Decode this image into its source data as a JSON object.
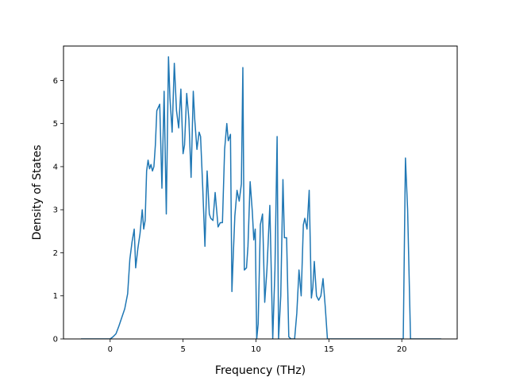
{
  "chart_data": {
    "type": "line",
    "title": "",
    "xlabel": "Frequency (THz)",
    "ylabel": "Density of States",
    "xlim": [
      -3.2,
      23.8
    ],
    "ylim": [
      0,
      6.8
    ],
    "grid": false,
    "legend": "none",
    "x_ticks": [
      0,
      5,
      10,
      15,
      20
    ],
    "x_tick_labels": [
      "0",
      "5",
      "10",
      "15",
      "20"
    ],
    "y_ticks": [
      0,
      1,
      2,
      3,
      4,
      5,
      6
    ],
    "y_tick_labels": [
      "0",
      "1",
      "2",
      "3",
      "4",
      "5",
      "6"
    ],
    "series": [
      {
        "color": "#1f77b4",
        "x": [
          -2.0,
          -1.0,
          0.0,
          0.2,
          0.4,
          0.6,
          0.8,
          1.0,
          1.2,
          1.35,
          1.5,
          1.65,
          1.75,
          1.9,
          2.05,
          2.2,
          2.3,
          2.4,
          2.5,
          2.6,
          2.7,
          2.8,
          2.9,
          3.0,
          3.1,
          3.2,
          3.4,
          3.55,
          3.7,
          3.85,
          4.0,
          4.1,
          4.25,
          4.4,
          4.55,
          4.7,
          4.85,
          5.0,
          5.1,
          5.25,
          5.4,
          5.55,
          5.7,
          5.8,
          5.95,
          6.1,
          6.2,
          6.35,
          6.5,
          6.65,
          6.8,
          6.9,
          7.05,
          7.2,
          7.4,
          7.55,
          7.7,
          7.85,
          8.0,
          8.1,
          8.25,
          8.35,
          8.45,
          8.55,
          8.7,
          8.85,
          9.0,
          9.1,
          9.2,
          9.35,
          9.45,
          9.6,
          9.75,
          9.85,
          9.95,
          10.05,
          10.15,
          10.3,
          10.45,
          10.6,
          10.75,
          10.95,
          11.15,
          11.3,
          11.45,
          11.55,
          11.7,
          11.85,
          11.95,
          12.1,
          12.25,
          12.4,
          12.55,
          12.65,
          12.8,
          12.95,
          13.1,
          13.25,
          13.35,
          13.5,
          13.65,
          13.8,
          13.9,
          14.0,
          14.15,
          14.3,
          14.45,
          14.6,
          14.75,
          14.9,
          15.05,
          15.2,
          15.4,
          17.0,
          19.0,
          20.1,
          20.25,
          20.4,
          20.6,
          20.8,
          21.5,
          22.7
        ],
        "values": [
          0,
          0,
          0,
          0.05,
          0.12,
          0.3,
          0.5,
          0.7,
          1.05,
          1.85,
          2.25,
          2.55,
          1.65,
          2.1,
          2.45,
          3.0,
          2.55,
          2.75,
          3.9,
          4.15,
          3.95,
          4.05,
          3.9,
          4.0,
          4.5,
          5.3,
          5.45,
          3.5,
          5.75,
          2.9,
          6.55,
          5.6,
          4.8,
          6.4,
          5.3,
          4.9,
          5.8,
          4.3,
          4.5,
          5.7,
          5.1,
          3.75,
          5.75,
          5.1,
          4.4,
          4.8,
          4.7,
          3.5,
          2.15,
          3.9,
          2.9,
          2.8,
          2.75,
          3.4,
          2.6,
          2.7,
          2.7,
          4.4,
          5.0,
          4.6,
          4.75,
          1.1,
          2.0,
          2.85,
          3.45,
          3.2,
          3.6,
          6.3,
          1.6,
          1.65,
          2.15,
          3.65,
          2.95,
          2.3,
          2.55,
          0.0,
          0.35,
          2.65,
          2.9,
          0.85,
          1.6,
          3.1,
          0.0,
          1.6,
          4.7,
          0.0,
          1.0,
          3.7,
          2.35,
          2.35,
          0.05,
          0.0,
          0.0,
          0.0,
          0.6,
          1.6,
          1.0,
          2.65,
          2.8,
          2.55,
          3.45,
          0.95,
          1.2,
          1.8,
          1.0,
          0.9,
          1.0,
          1.4,
          0.75,
          0.0,
          0.0,
          0.0,
          0.0,
          0.0,
          0.0,
          0.0,
          4.2,
          3.0,
          0.0,
          0.0,
          0.0,
          0.0
        ]
      }
    ]
  }
}
